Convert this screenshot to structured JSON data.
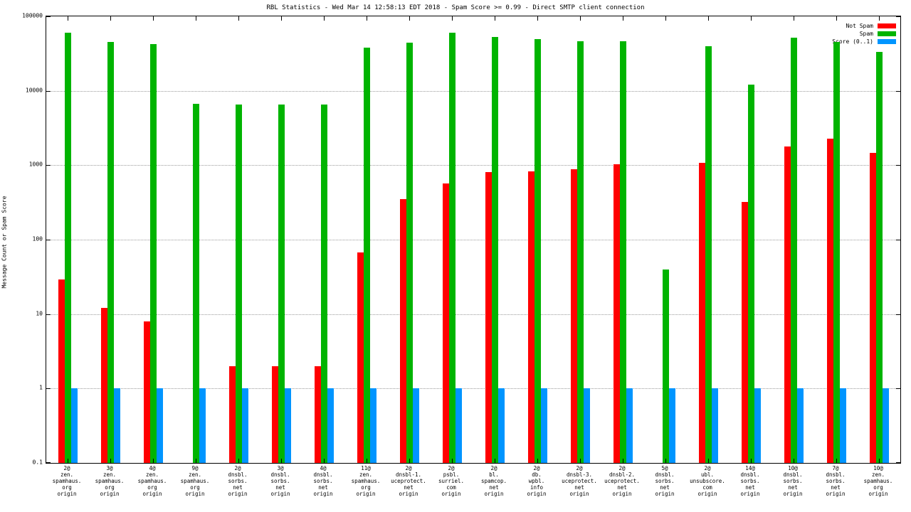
{
  "chart_data": {
    "type": "bar",
    "title": "RBL Statistics - Wed Mar 14 12:58:13 EDT 2018 - Spam Score >= 0.99 - Direct SMTP client connection",
    "ylabel": "Message Count or Spam Score",
    "y_scale": "log",
    "ylim": [
      0.1,
      100000
    ],
    "y_ticks": [
      100000,
      10000,
      1000,
      100,
      10,
      1,
      0.1
    ],
    "y_tick_labels": [
      "100000",
      "10000",
      "1000",
      "100",
      "10",
      "1",
      "0.1"
    ],
    "grid": "horizontal-dotted",
    "legend_position": "top-right-inside",
    "legend": [
      {
        "name": "Not Spam",
        "color": "#ff0000"
      },
      {
        "name": "Spam",
        "color": "#00b400"
      },
      {
        "name": "Score (0..1)",
        "color": "#0095ff"
      }
    ],
    "categories": [
      [
        "2@",
        "zen.",
        "spamhaus.",
        "org",
        "origin"
      ],
      [
        "3@",
        "zen.",
        "spamhaus.",
        "org",
        "origin"
      ],
      [
        "4@",
        "zen.",
        "spamhaus.",
        "org",
        "origin"
      ],
      [
        "9@",
        "zen.",
        "spamhaus.",
        "org",
        "origin"
      ],
      [
        "2@",
        "dnsbl.",
        "sorbs.",
        "net",
        "origin"
      ],
      [
        "3@",
        "dnsbl.",
        "sorbs.",
        "net",
        "origin"
      ],
      [
        "4@",
        "dnsbl.",
        "sorbs.",
        "net",
        "origin"
      ],
      [
        "11@",
        "zen.",
        "spamhaus.",
        "org",
        "origin"
      ],
      [
        "2@",
        "dnsbl-1.",
        "uceprotect.",
        "net",
        "origin"
      ],
      [
        "2@",
        "psbl.",
        "surriel.",
        "com",
        "origin"
      ],
      [
        "2@",
        "bl.",
        "spamcop.",
        "net",
        "origin"
      ],
      [
        "2@",
        "db.",
        "wpbl.",
        "info",
        "origin"
      ],
      [
        "2@",
        "dnsbl-3.",
        "uceprotect.",
        "net",
        "origin"
      ],
      [
        "2@",
        "dnsbl-2.",
        "uceprotect.",
        "net",
        "origin"
      ],
      [
        "5@",
        "dnsbl.",
        "sorbs.",
        "net",
        "origin"
      ],
      [
        "2@",
        "ubl.",
        "unsubscore.",
        "com",
        "origin"
      ],
      [
        "14@",
        "dnsbl.",
        "sorbs.",
        "net",
        "origin"
      ],
      [
        "10@",
        "dnsbl.",
        "sorbs.",
        "net",
        "origin"
      ],
      [
        "7@",
        "dnsbl.",
        "sorbs.",
        "net",
        "origin"
      ],
      [
        "10@",
        "zen.",
        "spamhaus.",
        "org",
        "origin"
      ]
    ],
    "series": [
      {
        "name": "Not Spam",
        "color": "#ff0000",
        "values": [
          29,
          12,
          8,
          0,
          2,
          2,
          2,
          68,
          350,
          570,
          800,
          830,
          880,
          1020,
          0,
          1080,
          320,
          1800,
          2250,
          1450
        ]
      },
      {
        "name": "Spam",
        "color": "#00b400",
        "values": [
          60000,
          45000,
          42000,
          6700,
          6500,
          6500,
          6500,
          38000,
          44000,
          60000,
          53000,
          49000,
          46000,
          46000,
          40,
          40000,
          12000,
          52000,
          45000,
          33000
        ]
      },
      {
        "name": "Score (0..1)",
        "color": "#0095ff",
        "values": [
          1,
          1,
          1,
          1,
          1,
          1,
          1,
          1,
          1,
          1,
          1,
          1,
          1,
          1,
          1,
          1,
          1,
          1,
          1,
          1
        ]
      }
    ]
  }
}
